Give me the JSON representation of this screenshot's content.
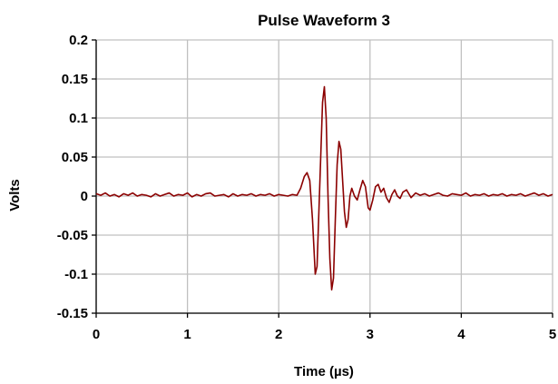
{
  "chart_data": {
    "type": "line",
    "title": "Pulse Waveform 3",
    "xlabel": "Time (µs)",
    "ylabel": "Volts",
    "xlim": [
      0,
      5
    ],
    "ylim": [
      -0.15,
      0.2
    ],
    "x_ticks": [
      "0",
      "1",
      "2",
      "3",
      "4",
      "5"
    ],
    "x_tick_values": [
      0,
      1,
      2,
      3,
      4,
      5
    ],
    "y_ticks": [
      "0.2",
      "0.15",
      "0.1",
      "0.05",
      "0",
      "-0.05",
      "-0.1",
      "-0.15"
    ],
    "y_tick_values": [
      0.2,
      0.15,
      0.1,
      0.05,
      0,
      -0.05,
      -0.1,
      -0.15
    ],
    "grid": true,
    "legend": "none",
    "series": [
      {
        "color": "#8b0000",
        "x": [
          0,
          0.05,
          0.1,
          0.15,
          0.2,
          0.25,
          0.3,
          0.35,
          0.4,
          0.45,
          0.5,
          0.55,
          0.6,
          0.65,
          0.7,
          0.75,
          0.8,
          0.85,
          0.9,
          0.95,
          1.0,
          1.05,
          1.1,
          1.15,
          1.2,
          1.25,
          1.3,
          1.35,
          1.4,
          1.45,
          1.5,
          1.55,
          1.6,
          1.65,
          1.7,
          1.75,
          1.8,
          1.85,
          1.9,
          1.95,
          2.0,
          2.05,
          2.1,
          2.15,
          2.2,
          2.24,
          2.28,
          2.31,
          2.34,
          2.37,
          2.4,
          2.42,
          2.44,
          2.46,
          2.48,
          2.5,
          2.52,
          2.54,
          2.56,
          2.58,
          2.6,
          2.62,
          2.64,
          2.66,
          2.68,
          2.7,
          2.72,
          2.74,
          2.76,
          2.78,
          2.8,
          2.83,
          2.86,
          2.89,
          2.92,
          2.95,
          2.98,
          3.0,
          3.03,
          3.06,
          3.09,
          3.12,
          3.15,
          3.18,
          3.21,
          3.24,
          3.27,
          3.3,
          3.33,
          3.36,
          3.4,
          3.45,
          3.5,
          3.55,
          3.6,
          3.65,
          3.7,
          3.75,
          3.8,
          3.85,
          3.9,
          3.95,
          4.0,
          4.05,
          4.1,
          4.15,
          4.2,
          4.25,
          4.3,
          4.35,
          4.4,
          4.45,
          4.5,
          4.55,
          4.6,
          4.65,
          4.7,
          4.75,
          4.8,
          4.85,
          4.9,
          4.95,
          5.0
        ],
        "values": [
          0.003,
          0.001,
          0.004,
          0.0,
          0.002,
          -0.001,
          0.003,
          0.001,
          0.004,
          0.0,
          0.002,
          0.001,
          -0.001,
          0.003,
          0.0,
          0.002,
          0.004,
          0.0,
          0.002,
          0.001,
          0.004,
          -0.001,
          0.002,
          0.0,
          0.003,
          0.004,
          0.0,
          0.001,
          0.002,
          -0.001,
          0.003,
          0.0,
          0.002,
          0.001,
          0.003,
          0.0,
          0.002,
          0.001,
          0.003,
          0.0,
          0.002,
          0.001,
          0.0,
          0.002,
          0.001,
          0.01,
          0.025,
          0.03,
          0.02,
          -0.03,
          -0.1,
          -0.09,
          -0.02,
          0.05,
          0.12,
          0.14,
          0.1,
          0.0,
          -0.08,
          -0.12,
          -0.105,
          -0.03,
          0.04,
          0.07,
          0.06,
          0.02,
          -0.02,
          -0.04,
          -0.03,
          0.0,
          0.01,
          0.0,
          -0.005,
          0.008,
          0.02,
          0.012,
          -0.015,
          -0.018,
          -0.005,
          0.012,
          0.015,
          0.005,
          0.01,
          -0.002,
          -0.008,
          0.002,
          0.008,
          0.0,
          -0.003,
          0.005,
          0.008,
          -0.002,
          0.004,
          0.001,
          0.003,
          0.0,
          0.002,
          0.004,
          0.001,
          0.0,
          0.003,
          0.002,
          0.001,
          0.004,
          0.0,
          0.002,
          0.001,
          0.003,
          0.0,
          0.002,
          0.001,
          0.003,
          0.0,
          0.002,
          0.001,
          0.003,
          0.0,
          0.002,
          0.004,
          0.001,
          0.003,
          0.0,
          0.002
        ]
      }
    ]
  }
}
